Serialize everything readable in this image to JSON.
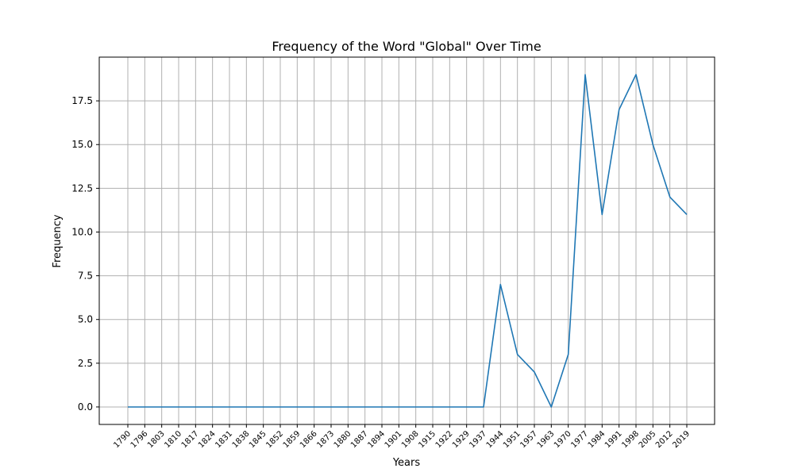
{
  "chart_data": {
    "type": "line",
    "title": "Frequency of the Word \"Global\" Over Time",
    "xlabel": "Years",
    "ylabel": "Frequency",
    "x": [
      "1790",
      "1796",
      "1803",
      "1810",
      "1817",
      "1824",
      "1831",
      "1838",
      "1845",
      "1852",
      "1859",
      "1866",
      "1873",
      "1880",
      "1887",
      "1894",
      "1901",
      "1908",
      "1915",
      "1922",
      "1929",
      "1937",
      "1944",
      "1951",
      "1957",
      "1963",
      "1970",
      "1977",
      "1984",
      "1991",
      "1998",
      "2005",
      "2012",
      "2019"
    ],
    "series": [
      {
        "color": "#1f77b4",
        "values": [
          0,
          0,
          0,
          0,
          0,
          0,
          0,
          0,
          0,
          0,
          0,
          0,
          0,
          0,
          0,
          0,
          0,
          0,
          0,
          0,
          0,
          0,
          7,
          3,
          2,
          0,
          3,
          19,
          11,
          17,
          19,
          15,
          12,
          11
        ]
      }
    ],
    "yticks": [
      "0.0",
      "2.5",
      "5.0",
      "7.5",
      "10.0",
      "12.5",
      "15.0",
      "17.5"
    ],
    "ylim": [
      -1,
      20
    ],
    "grid": true,
    "legend": "none"
  }
}
